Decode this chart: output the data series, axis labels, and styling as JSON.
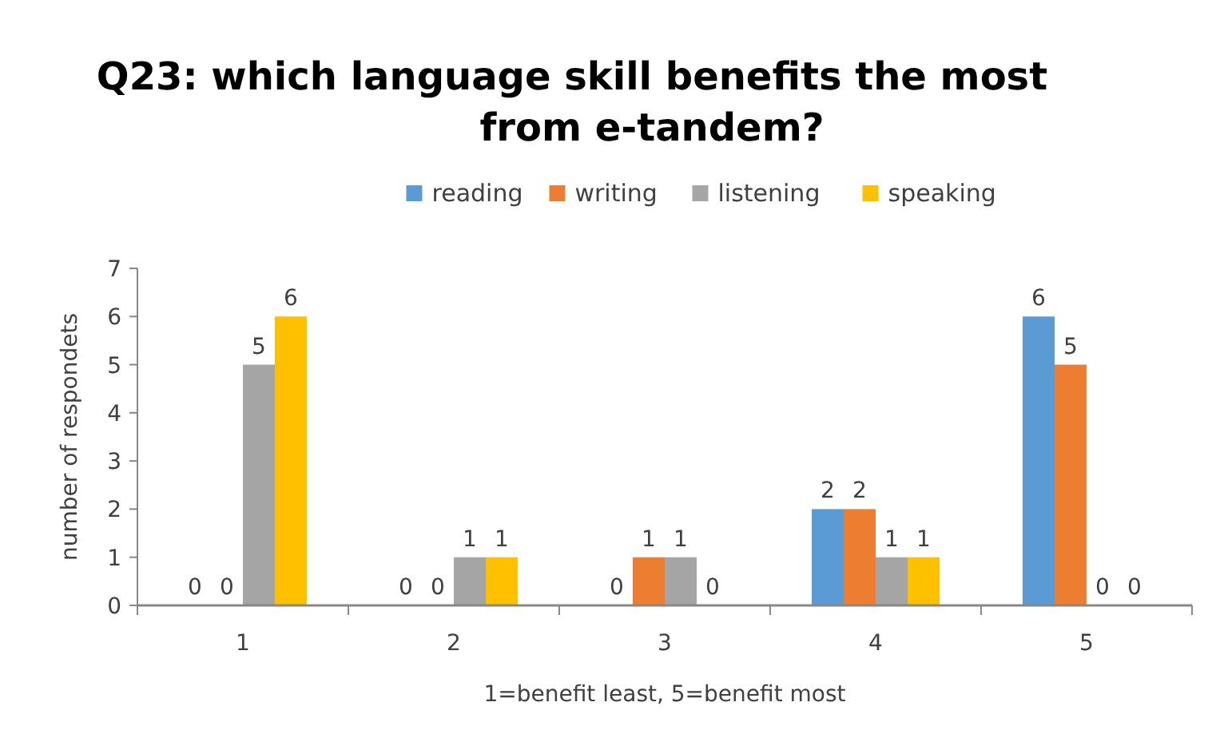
{
  "chart_data": {
    "type": "bar",
    "title": "Q23: which language skill benefits the most from e-tandem?",
    "xlabel": "1=benefit least, 5=benefit most",
    "ylabel": "number of respondets",
    "categories": [
      "1",
      "2",
      "3",
      "4",
      "5"
    ],
    "series": [
      {
        "name": "reading",
        "color": "#5b9bd5",
        "values": [
          0,
          0,
          0,
          2,
          6
        ]
      },
      {
        "name": "writing",
        "color": "#ed7d31",
        "values": [
          0,
          0,
          1,
          2,
          5
        ]
      },
      {
        "name": "listening",
        "color": "#a5a5a5",
        "values": [
          5,
          1,
          1,
          1,
          0
        ]
      },
      {
        "name": "speaking",
        "color": "#ffc000",
        "values": [
          6,
          1,
          0,
          1,
          0
        ]
      }
    ],
    "ylim": [
      0,
      7
    ],
    "yticks": [
      0,
      1,
      2,
      3,
      4,
      5,
      6,
      7
    ],
    "grid": false,
    "legend": "top",
    "data_labels": true
  }
}
